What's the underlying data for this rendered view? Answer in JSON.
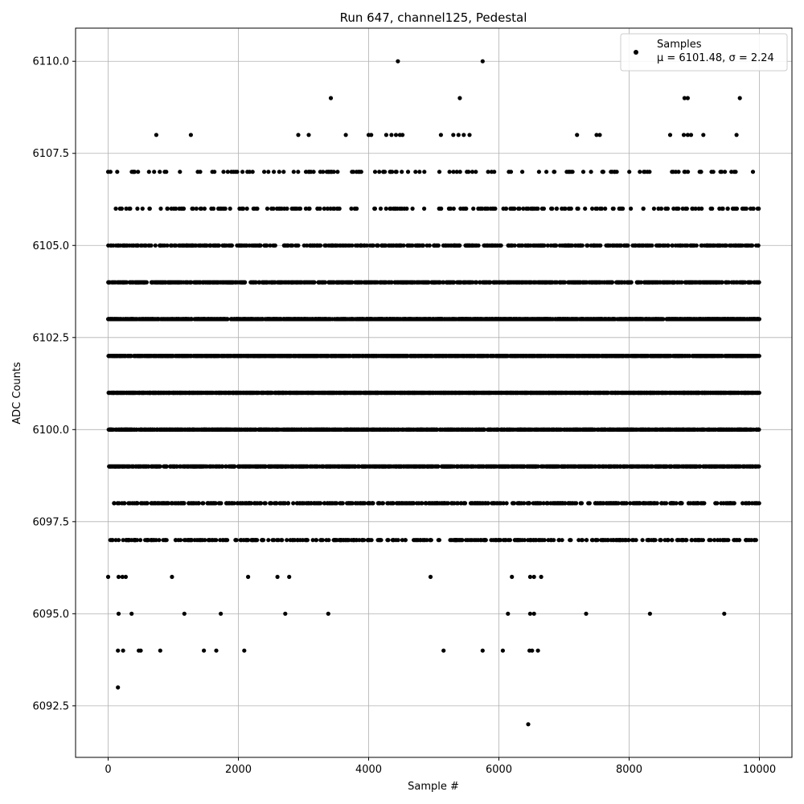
{
  "chart_data": {
    "type": "scatter",
    "title": "Run 647, channel125, Pedestal",
    "xlabel": "Sample #",
    "ylabel": "ADC Counts",
    "xlim": [
      -500,
      10500
    ],
    "ylim": [
      6091.1,
      6110.9
    ],
    "xticks": [
      0,
      2000,
      4000,
      6000,
      8000,
      10000
    ],
    "xtick_labels": [
      "0",
      "2000",
      "4000",
      "6000",
      "8000",
      "10000"
    ],
    "yticks": [
      6092.5,
      6095.0,
      6097.5,
      6100.0,
      6102.5,
      6105.0,
      6107.5,
      6110.0
    ],
    "ytick_labels": [
      "6092.5",
      "6095.0",
      "6097.5",
      "6100.0",
      "6102.5",
      "6105.0",
      "6107.5",
      "6110.0"
    ],
    "grid": true,
    "legend_position": "upper right",
    "marker_color": "#000000",
    "series": [
      {
        "name": "Samples",
        "stats_text": "μ = 6101.48, σ = 2.24",
        "mean": 6101.48,
        "std": 2.24,
        "n_samples": 10000,
        "outliers": [
          {
            "x": 150,
            "y": 6093
          },
          {
            "x": 6450,
            "y": 6092
          },
          {
            "x": 4450,
            "y": 6110
          },
          {
            "x": 5750,
            "y": 6110
          },
          {
            "x": 3420,
            "y": 6109
          },
          {
            "x": 5400,
            "y": 6109
          },
          {
            "x": 8850,
            "y": 6109
          },
          {
            "x": 8900,
            "y": 6109
          },
          {
            "x": 9700,
            "y": 6109
          },
          {
            "x": 740,
            "y": 6108
          },
          {
            "x": 1270,
            "y": 6108
          },
          {
            "x": 2920,
            "y": 6108
          },
          {
            "x": 3080,
            "y": 6108
          },
          {
            "x": 3650,
            "y": 6108
          },
          {
            "x": 4000,
            "y": 6108
          },
          {
            "x": 4040,
            "y": 6108
          },
          {
            "x": 4270,
            "y": 6108
          },
          {
            "x": 4350,
            "y": 6108
          },
          {
            "x": 4420,
            "y": 6108
          },
          {
            "x": 4480,
            "y": 6108
          },
          {
            "x": 4520,
            "y": 6108
          },
          {
            "x": 5110,
            "y": 6108
          },
          {
            "x": 5300,
            "y": 6108
          },
          {
            "x": 5380,
            "y": 6108
          },
          {
            "x": 5460,
            "y": 6108
          },
          {
            "x": 5550,
            "y": 6108
          },
          {
            "x": 7200,
            "y": 6108
          },
          {
            "x": 7500,
            "y": 6108
          },
          {
            "x": 7550,
            "y": 6108
          },
          {
            "x": 8630,
            "y": 6108
          },
          {
            "x": 8840,
            "y": 6108
          },
          {
            "x": 8900,
            "y": 6108
          },
          {
            "x": 8950,
            "y": 6108
          },
          {
            "x": 9140,
            "y": 6108
          },
          {
            "x": 9650,
            "y": 6108
          },
          {
            "x": 160,
            "y": 6096
          },
          {
            "x": 220,
            "y": 6096
          },
          {
            "x": 270,
            "y": 6096
          },
          {
            "x": 980,
            "y": 6096
          },
          {
            "x": 2150,
            "y": 6096
          },
          {
            "x": 2600,
            "y": 6096
          },
          {
            "x": 2780,
            "y": 6096
          },
          {
            "x": 4950,
            "y": 6096
          },
          {
            "x": 6200,
            "y": 6096
          },
          {
            "x": 6480,
            "y": 6096
          },
          {
            "x": 6540,
            "y": 6096
          },
          {
            "x": 6650,
            "y": 6096
          },
          {
            "x": 0,
            "y": 6096
          },
          {
            "x": 160,
            "y": 6095
          },
          {
            "x": 360,
            "y": 6095
          },
          {
            "x": 1170,
            "y": 6095
          },
          {
            "x": 1730,
            "y": 6095
          },
          {
            "x": 2720,
            "y": 6095
          },
          {
            "x": 3380,
            "y": 6095
          },
          {
            "x": 6140,
            "y": 6095
          },
          {
            "x": 6480,
            "y": 6095
          },
          {
            "x": 6540,
            "y": 6095
          },
          {
            "x": 7340,
            "y": 6095
          },
          {
            "x": 8320,
            "y": 6095
          },
          {
            "x": 9460,
            "y": 6095
          },
          {
            "x": 150,
            "y": 6094
          },
          {
            "x": 230,
            "y": 6094
          },
          {
            "x": 470,
            "y": 6094
          },
          {
            "x": 500,
            "y": 6094
          },
          {
            "x": 800,
            "y": 6094
          },
          {
            "x": 1470,
            "y": 6094
          },
          {
            "x": 1660,
            "y": 6094
          },
          {
            "x": 2090,
            "y": 6094
          },
          {
            "x": 5150,
            "y": 6094
          },
          {
            "x": 5750,
            "y": 6094
          },
          {
            "x": 6060,
            "y": 6094
          },
          {
            "x": 6470,
            "y": 6094
          },
          {
            "x": 6510,
            "y": 6094
          },
          {
            "x": 6600,
            "y": 6094
          }
        ]
      }
    ]
  }
}
